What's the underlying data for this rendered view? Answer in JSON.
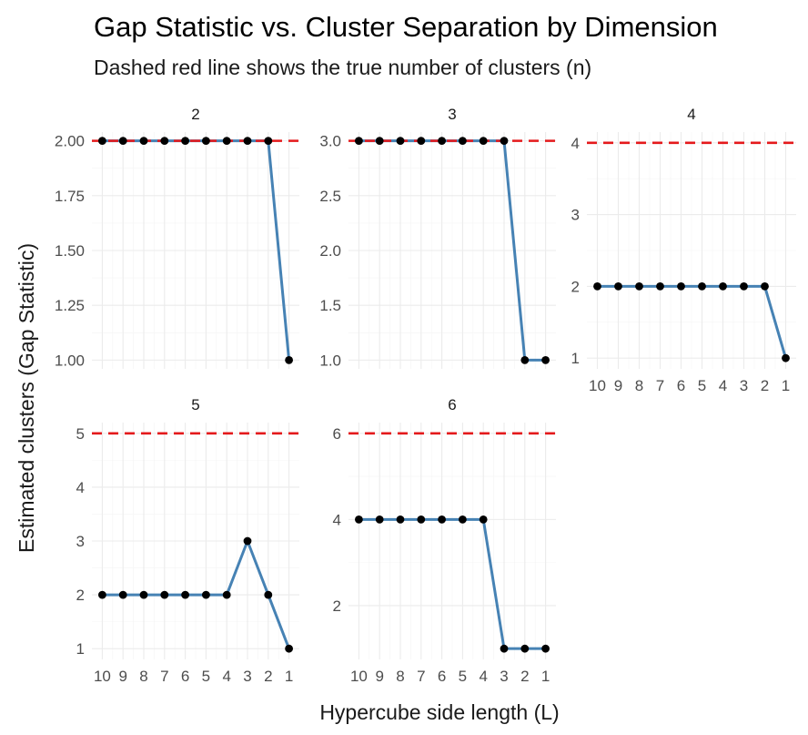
{
  "chart_data": {
    "type": "line",
    "title": "Gap Statistic vs. Cluster Separation by Dimension",
    "subtitle": "Dashed red line shows the true number of clusters (n)",
    "xlabel": "Hypercube side length (L)",
    "ylabel": "Estimated clusters (Gap Statistic)",
    "x_reversed": true,
    "x": [
      10,
      9,
      8,
      7,
      6,
      5,
      4,
      3,
      2,
      1
    ],
    "x_tick_labels": [
      "10",
      "9",
      "8",
      "7",
      "6",
      "5",
      "4",
      "3",
      "2",
      "1"
    ],
    "line_color": "#4682b4",
    "point_color": "#000000",
    "reference_line_color": "#e41a1c",
    "grid": true,
    "facets": [
      {
        "label": "2",
        "true_n": 2,
        "ylim": [
          0.96,
          2.04
        ],
        "yticks": [
          1.0,
          1.25,
          1.5,
          1.75,
          2.0
        ],
        "ytick_labels": [
          "1.00",
          "1.25",
          "1.50",
          "1.75",
          "2.00"
        ],
        "values": [
          2,
          2,
          2,
          2,
          2,
          2,
          2,
          2,
          2,
          1
        ]
      },
      {
        "label": "3",
        "true_n": 3,
        "ylim": [
          0.92,
          3.08
        ],
        "yticks": [
          1.0,
          1.5,
          2.0,
          2.5,
          3.0
        ],
        "ytick_labels": [
          "1.0",
          "1.5",
          "2.0",
          "2.5",
          "3.0"
        ],
        "values": [
          3,
          3,
          3,
          3,
          3,
          3,
          3,
          3,
          1,
          1
        ]
      },
      {
        "label": "4",
        "true_n": 4,
        "ylim": [
          0.85,
          4.15
        ],
        "yticks": [
          1,
          2,
          3,
          4
        ],
        "ytick_labels": [
          "1",
          "2",
          "3",
          "4"
        ],
        "values": [
          2,
          2,
          2,
          2,
          2,
          2,
          2,
          2,
          2,
          1
        ]
      },
      {
        "label": "5",
        "true_n": 5,
        "ylim": [
          0.8,
          5.2
        ],
        "yticks": [
          1,
          2,
          3,
          4,
          5
        ],
        "ytick_labels": [
          "1",
          "2",
          "3",
          "4",
          "5"
        ],
        "values": [
          2,
          2,
          2,
          2,
          2,
          2,
          2,
          3,
          2,
          1
        ]
      },
      {
        "label": "6",
        "true_n": 6,
        "ylim": [
          0.75,
          6.25
        ],
        "yticks": [
          2,
          4,
          6
        ],
        "ytick_labels": [
          "2",
          "4",
          "6"
        ],
        "values": [
          4,
          4,
          4,
          4,
          4,
          4,
          4,
          1,
          1,
          1
        ]
      }
    ]
  }
}
